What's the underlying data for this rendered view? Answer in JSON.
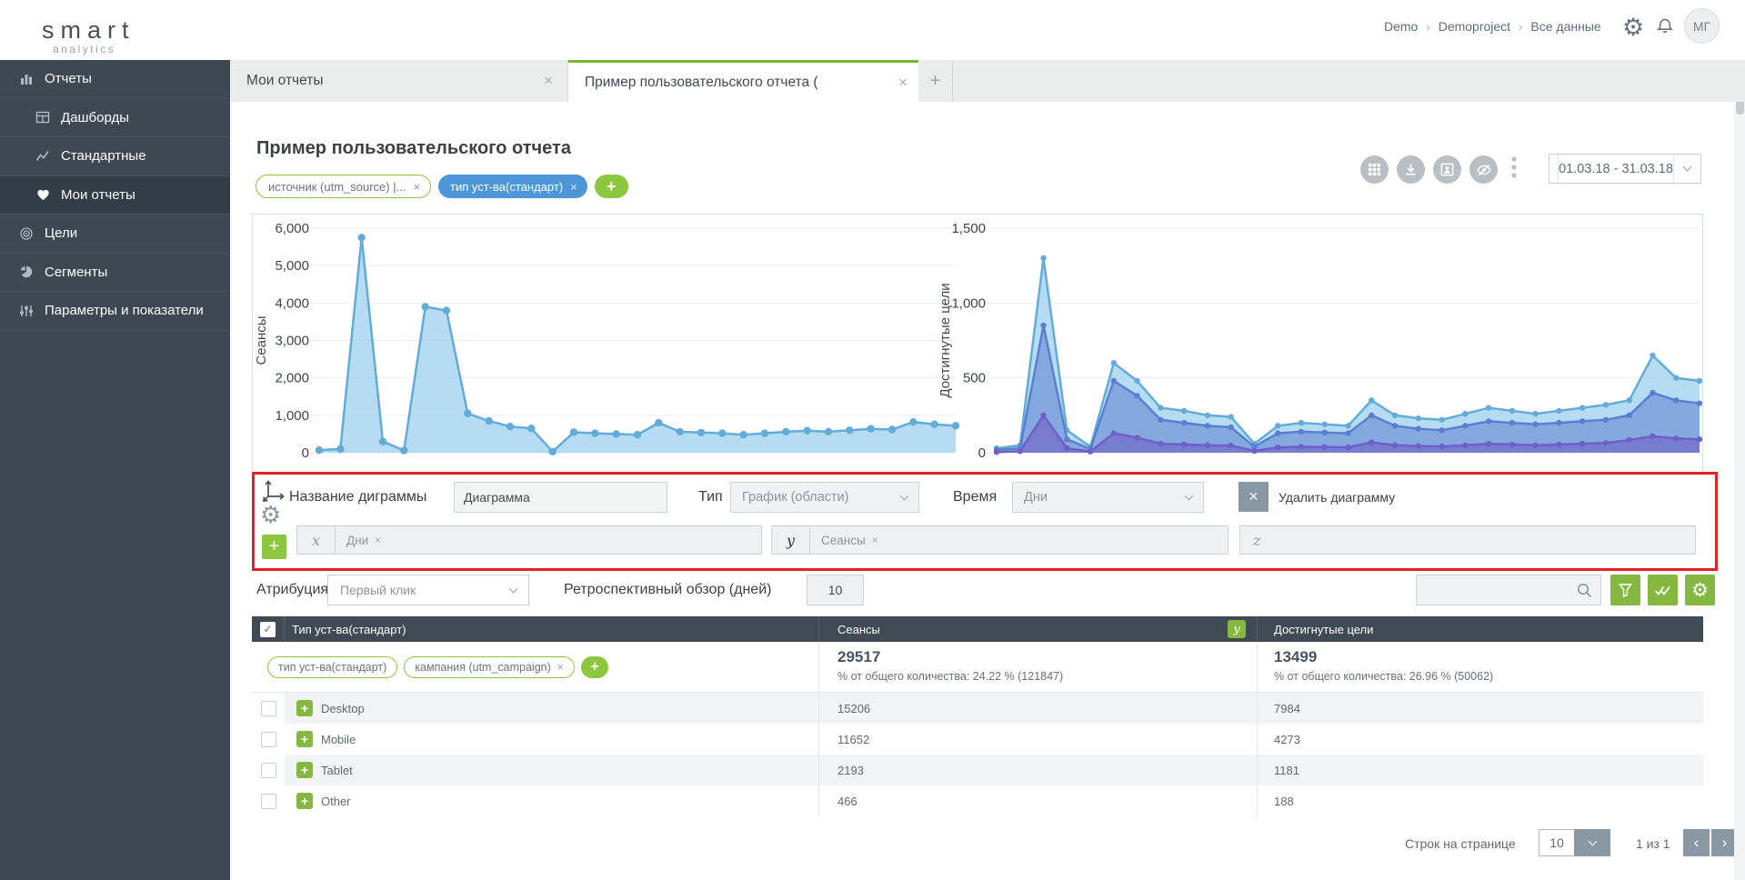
{
  "brand": {
    "name": "smart",
    "sub": "analytics",
    "dash_colors": [
      "#3aa9e0",
      "#f0a63c",
      "#8dc63f",
      "#f0a63c",
      "#8dc63f"
    ]
  },
  "glyphs": {
    "close": "×",
    "plus": "+",
    "check": "✓",
    "gear": "⚙",
    "crumb_sep": "›",
    "chev_left": "‹",
    "chev_right": "›",
    "collapse": "‹"
  },
  "header": {
    "breadcrumb": [
      "Demo",
      "Demoproject",
      "Все данные"
    ],
    "avatar": "МГ"
  },
  "sidebar": {
    "items": [
      {
        "label": "Отчеты"
      },
      {
        "label": "Дашборды"
      },
      {
        "label": "Стандартные"
      },
      {
        "label": "Мои отчеты"
      },
      {
        "label": "Цели"
      },
      {
        "label": "Сегменты"
      },
      {
        "label": "Параметры и показатели"
      }
    ]
  },
  "tabs": {
    "tab1": "Мои отчеты",
    "tab2": "Пример пользовательского отчета ("
  },
  "page": {
    "title": "Пример пользовательского отчета",
    "filters": [
      {
        "label": "источник (utm_source) |..."
      },
      {
        "label": "тип уст-ва(стандарт)"
      }
    ],
    "date_range": "01.03.18 - 31.03.18"
  },
  "chart_data": [
    {
      "type": "area",
      "ylabel": "Сеансы",
      "x_unit": "Дни",
      "ylim": [
        0,
        6000
      ],
      "grid": true,
      "legend": false,
      "dot_radius": 4.2,
      "yticks": [
        {
          "v": 6000,
          "label": "6,000"
        },
        {
          "v": 5000,
          "label": "5,000"
        },
        {
          "v": 4000,
          "label": "4,000"
        },
        {
          "v": 3000,
          "label": "3,000"
        },
        {
          "v": 2000,
          "label": "2,000"
        },
        {
          "v": 1000,
          "label": "1,000"
        },
        {
          "v": 0,
          "label": "0"
        }
      ],
      "series": [
        {
          "name": "Сеансы",
          "color": "#64acd8",
          "fill": "rgba(150,205,236,0.7)",
          "values": [
            70,
            100,
            5750,
            300,
            60,
            3900,
            3800,
            1050,
            850,
            700,
            650,
            30,
            550,
            520,
            500,
            480,
            800,
            560,
            540,
            520,
            480,
            520,
            560,
            590,
            560,
            600,
            640,
            620,
            820,
            760,
            720
          ]
        }
      ]
    },
    {
      "type": "area",
      "ylabel": "Достигнутые цели",
      "x_unit": "Дни",
      "ylim": [
        0,
        1500
      ],
      "grid": true,
      "legend": false,
      "dot_radius": 3.2,
      "yticks": [
        {
          "v": 1500,
          "label": "1,500"
        },
        {
          "v": 1000,
          "label": "1,000"
        },
        {
          "v": 500,
          "label": "500"
        },
        {
          "v": 0,
          "label": "0"
        }
      ],
      "series": [
        {
          "name": "Desktop",
          "color": "#64acd8",
          "fill": "rgba(150,205,236,0.7)",
          "values": [
            30,
            50,
            1300,
            150,
            40,
            600,
            480,
            300,
            280,
            250,
            240,
            60,
            180,
            200,
            190,
            180,
            350,
            250,
            230,
            220,
            260,
            300,
            280,
            260,
            280,
            300,
            320,
            350,
            650,
            500,
            480
          ]
        },
        {
          "name": "Mobile",
          "color": "#5b7fd0",
          "fill": "rgba(91,127,208,0.55)",
          "values": [
            20,
            30,
            850,
            90,
            25,
            480,
            380,
            220,
            200,
            180,
            170,
            40,
            130,
            140,
            135,
            130,
            250,
            180,
            160,
            150,
            180,
            210,
            200,
            190,
            200,
            210,
            220,
            250,
            400,
            350,
            330
          ]
        },
        {
          "name": "Tablet",
          "color": "#6f5fc8",
          "fill": "rgba(111,95,200,0.6)",
          "values": [
            5,
            10,
            250,
            30,
            8,
            130,
            100,
            60,
            55,
            50,
            48,
            12,
            35,
            40,
            38,
            36,
            70,
            50,
            45,
            42,
            50,
            60,
            55,
            50,
            55,
            60,
            65,
            85,
            110,
            95,
            90
          ]
        }
      ]
    }
  ],
  "editor": {
    "name_label": "Название диграммы",
    "name_value": "Диаграмма",
    "type_label": "Тип",
    "type_value": "График (области)",
    "time_label": "Время",
    "time_value": "Дни",
    "delete_label": "Удалить диаграмму",
    "x_prefix": "x",
    "x_token": "Дни",
    "y_prefix": "y",
    "y_token": "Сеансы",
    "z_prefix": "z"
  },
  "controls": {
    "attribution_label": "Атрибуция",
    "attribution_value": "Первый клик",
    "retro_label": "Ретроспективный обзор (дней)",
    "retro_value": "10"
  },
  "table": {
    "columns": [
      "Тип уст-ва(стандарт)",
      "Сеансы",
      "Достигнутые цели"
    ],
    "y_badge": "y",
    "segment_tags": [
      {
        "label": "тип уст-ва(стандарт)",
        "closable": false
      },
      {
        "label": "кампания (utm_campaign)",
        "closable": true
      }
    ],
    "totals": {
      "sessions": "29517",
      "sessions_sub": "% от общего количества: 24.22 % (121847)",
      "goals": "13499",
      "goals_sub": "% от общего количества: 26.96 % (50062)"
    },
    "rows": [
      {
        "name": "Desktop",
        "sessions": "15206",
        "goals": "7984"
      },
      {
        "name": "Mobile",
        "sessions": "11652",
        "goals": "4273"
      },
      {
        "name": "Tablet",
        "sessions": "2193",
        "goals": "1181"
      },
      {
        "name": "Other",
        "sessions": "466",
        "goals": "188"
      }
    ]
  },
  "pagination": {
    "rows_label": "Строк на странице",
    "rows_value": "10",
    "page_info": "1 из 1"
  }
}
